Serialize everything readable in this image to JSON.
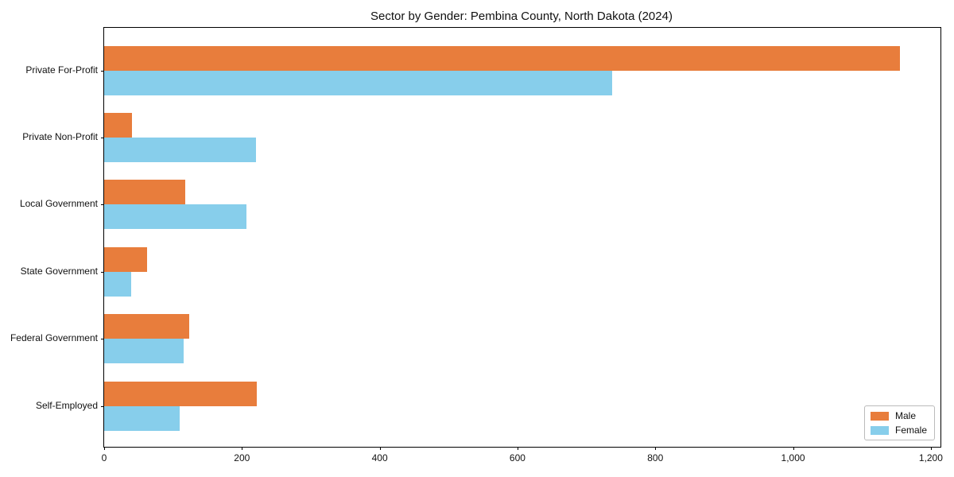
{
  "title": "Sector by Gender: Pembina County, North Dakota (2024)",
  "chart_data": {
    "type": "bar",
    "orientation": "horizontal",
    "title": "Sector by Gender: Pembina County, North Dakota (2024)",
    "xlabel": "",
    "ylabel": "",
    "categories": [
      "Private For-Profit",
      "Private Non-Profit",
      "Local Government",
      "State Government",
      "Federal Government",
      "Self-Employed"
    ],
    "series": [
      {
        "name": "Male",
        "color": "#E87D3C",
        "values": [
          1155,
          40,
          118,
          62,
          124,
          222
        ]
      },
      {
        "name": "Female",
        "color": "#87CEEB",
        "values": [
          737,
          220,
          207,
          39,
          115,
          110
        ]
      }
    ],
    "xlim": [
      0,
      1214
    ],
    "x_ticks": [
      0,
      200,
      400,
      600,
      800,
      1000,
      1200
    ],
    "x_tick_labels": [
      "0",
      "200",
      "400",
      "600",
      "800",
      "1,000",
      "1,200"
    ],
    "grid": false,
    "legend_position": "lower right"
  }
}
